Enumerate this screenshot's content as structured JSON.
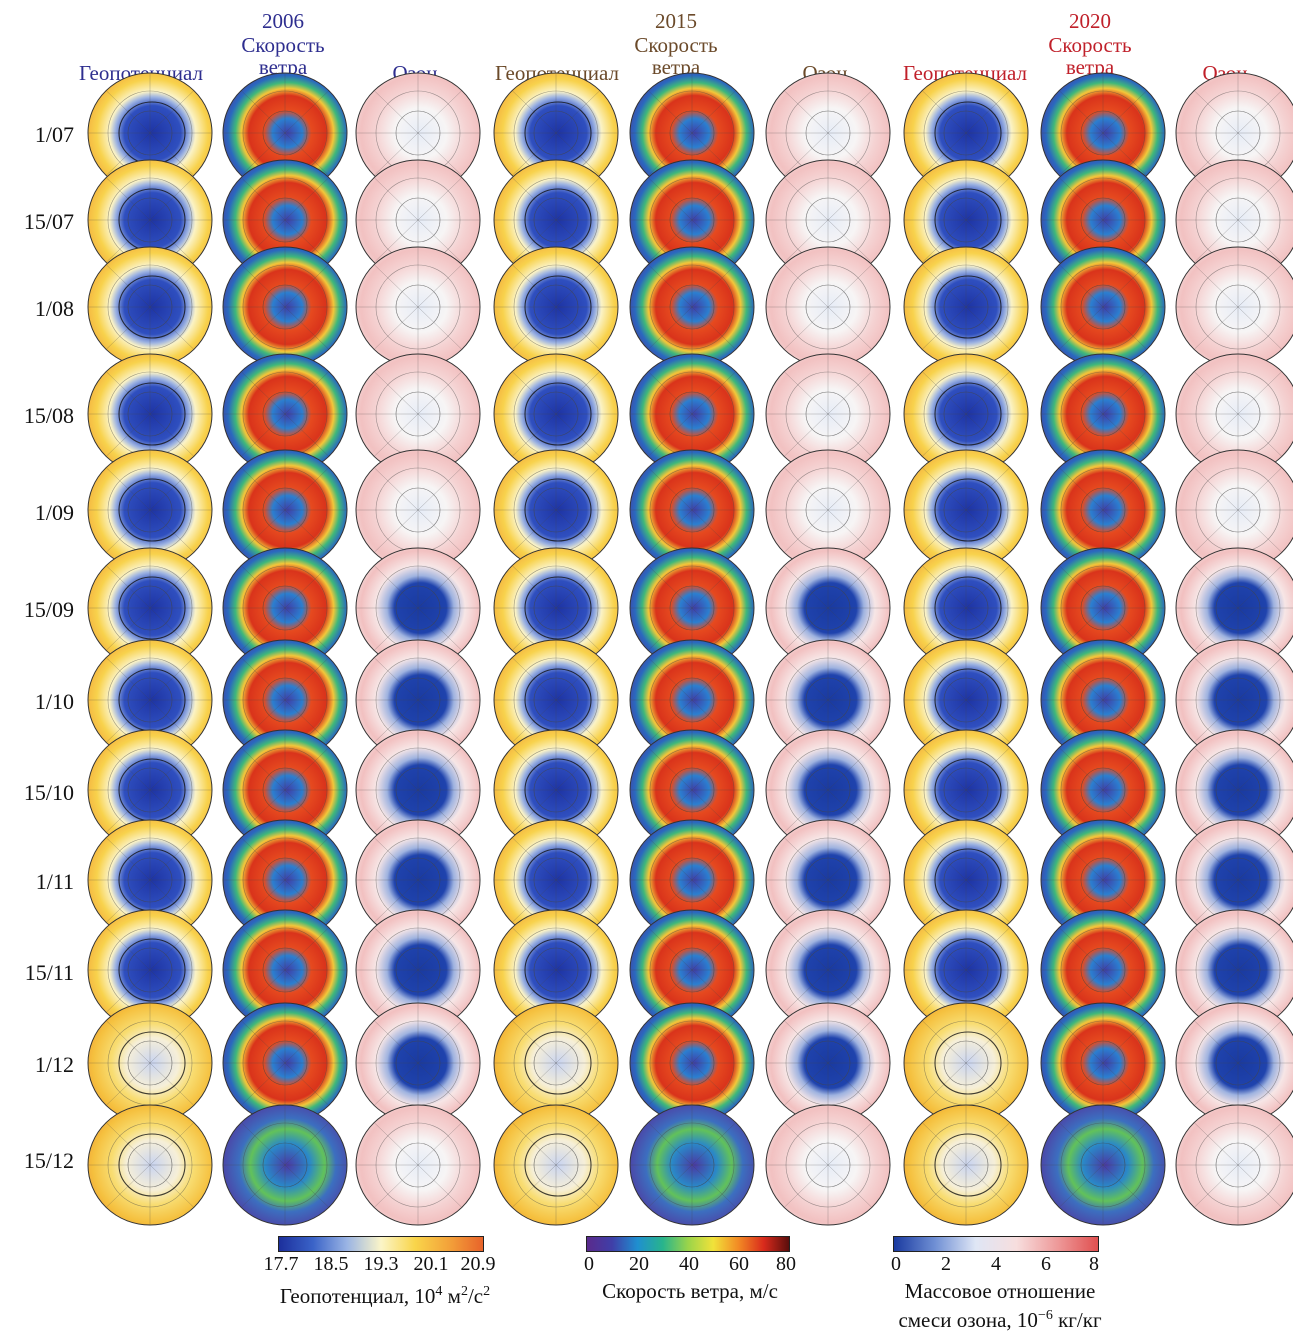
{
  "colors": {
    "y2006": "#2e2e8f",
    "y2015": "#6b4a2a",
    "y2020": "#c0202a"
  },
  "years": [
    {
      "year": "2006",
      "wind_label": "Скорость\nветра",
      "geo_label": "Геопотенциал",
      "ozone_label": "Озон"
    },
    {
      "year": "2015",
      "wind_label": "Скорость\nветра",
      "geo_label": "Геопотенциал",
      "ozone_label": "Озон"
    },
    {
      "year": "2020",
      "wind_label": "Скорость\nветра",
      "geo_label": "Геопотенциал",
      "ozone_label": "Озон"
    }
  ],
  "dates": [
    "1/07",
    "15/07",
    "1/08",
    "15/08",
    "1/09",
    "15/09",
    "1/10",
    "15/10",
    "1/11",
    "15/11",
    "1/12",
    "15/12"
  ],
  "colorbars": [
    {
      "id": "geopotential",
      "ticks": [
        "17.7",
        "18.5",
        "19.3",
        "20.1",
        "20.9"
      ],
      "title_parts": [
        "Геопотенциал, 10",
        "4",
        " м",
        "2",
        "/с",
        "2"
      ],
      "stops": [
        "#1c2f9c",
        "#3a63c8",
        "#9ab4e4",
        "#fbf5c8",
        "#f9d54a",
        "#f3a23a",
        "#e8632a"
      ]
    },
    {
      "id": "wind",
      "ticks": [
        "0",
        "20",
        "40",
        "60",
        "80"
      ],
      "title": "Скорость ветра, м/с",
      "stops": [
        "#5a2a8c",
        "#3f3fa8",
        "#1f8fd0",
        "#28b48c",
        "#9ad44a",
        "#f1e23a",
        "#f28a24",
        "#d92a1c",
        "#5a0e0c"
      ]
    },
    {
      "id": "ozone",
      "ticks": [
        "0",
        "2",
        "4",
        "6",
        "8"
      ],
      "title_line1": "Массовое отношение",
      "title_line2_parts": [
        "смеси озона, 10",
        "−6",
        " кг/кг"
      ],
      "stops": [
        "#1a3aa0",
        "#6f8fd4",
        "#dfe6f5",
        "#f7dede",
        "#ee9a9a",
        "#e05050"
      ]
    }
  ]
}
